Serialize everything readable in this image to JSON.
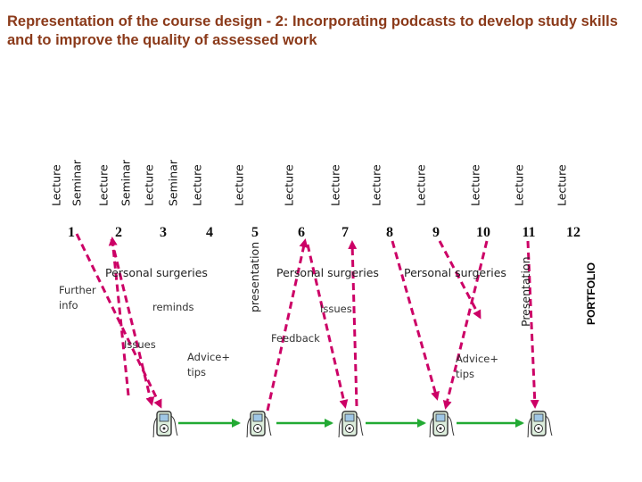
{
  "title": "Representation of the course design - 2: Incorporating podcasts to develop study skills and to improve the quality of assessed work",
  "sessions": [
    "Lecture",
    "Seminar",
    "Lecture",
    "Seminar",
    "Lecture",
    "Seminar",
    "Lecture",
    "Lecture",
    "Lecture",
    "Lecture",
    "Lecture",
    "Lecture",
    "Lecture",
    "Lecture",
    "Lecture"
  ],
  "weeks": [
    "1",
    "2",
    "3",
    "4",
    "5",
    "6",
    "7",
    "8",
    "9",
    "10",
    "11",
    "12"
  ],
  "notes": {
    "personal_surgeries_1": "Personal surgeries",
    "further_info": "Further info",
    "reminds": "reminds",
    "issues_1": "Issues",
    "advice_tips_1": "Advice+ tips",
    "presentation_1": "presentation",
    "personal_surgeries_2": "Personal surgeries",
    "issues_2": "Issues",
    "feedback": "Feedback",
    "personal_surgeries_3": "Personal surgeries",
    "advice_tips_2": "Advice+ tips",
    "presentation_2": "Presentation",
    "portfolio": "PORTFOLIO"
  },
  "colors": {
    "title": "#8B3A1A",
    "dashed_arrow": "#CC0066",
    "arrow_line": "#22AA33",
    "player_body": "#DDEEDD",
    "player_outline": "#333333"
  }
}
